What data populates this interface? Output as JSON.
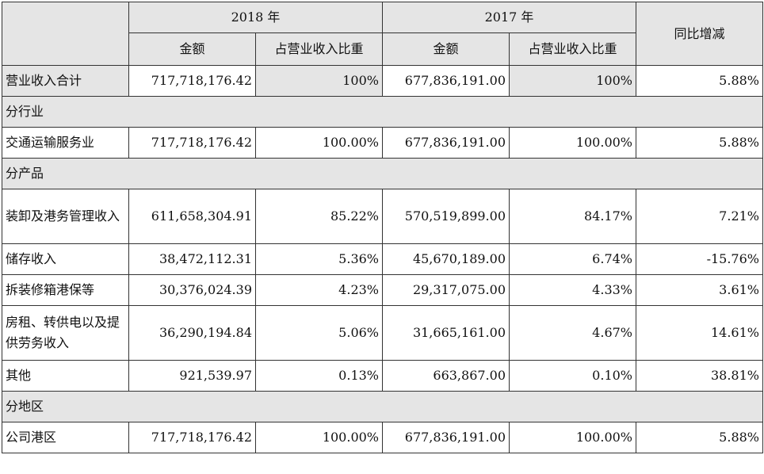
{
  "header": {
    "year_2018": "2018 年",
    "year_2017": "2017 年",
    "yoy": "同比增减",
    "amount_2018": "金额",
    "ratio_2018": "占营业收入比重",
    "amount_2017": "金额",
    "ratio_2017": "占营业收入比重"
  },
  "total": {
    "label": "营业收入合计",
    "amount_2018": "717,718,176.42",
    "ratio_2018": "100%",
    "amount_2017": "677,836,191.00",
    "ratio_2017": "100%",
    "yoy": "5.88%"
  },
  "sections": {
    "industry": "分行业",
    "product": "分产品",
    "region": "分地区"
  },
  "rows": {
    "transport": {
      "label": "交通运输服务业",
      "amount_2018": "717,718,176.42",
      "ratio_2018": "100.00%",
      "amount_2017": "677,836,191.00",
      "ratio_2017": "100.00%",
      "yoy": "5.88%"
    },
    "loading": {
      "label": "装卸及港务管理收入",
      "amount_2018": "611,658,304.91",
      "ratio_2018": "85.22%",
      "amount_2017": "570,519,899.00",
      "ratio_2017": "84.17%",
      "yoy": "7.21%"
    },
    "storage": {
      "label": "储存收入",
      "amount_2018": "38,472,112.31",
      "ratio_2018": "5.36%",
      "amount_2017": "45,670,189.00",
      "ratio_2017": "6.74%",
      "yoy": "-15.76%"
    },
    "container": {
      "label": "拆装修箱港保等",
      "amount_2018": "30,376,024.39",
      "ratio_2018": "4.23%",
      "amount_2017": "29,317,075.00",
      "ratio_2017": "4.33%",
      "yoy": "3.61%"
    },
    "rent": {
      "label": "房租、转供电以及提供劳务收入",
      "amount_2018": "36,290,194.84",
      "ratio_2018": "5.06%",
      "amount_2017": "31,665,161.00",
      "ratio_2017": "4.67%",
      "yoy": "14.61%"
    },
    "other": {
      "label": "其他",
      "amount_2018": "921,539.97",
      "ratio_2018": "0.13%",
      "amount_2017": "663,867.00",
      "ratio_2017": "0.10%",
      "yoy": "38.81%"
    },
    "port": {
      "label": "公司港区",
      "amount_2018": "717,718,176.42",
      "ratio_2018": "100.00%",
      "amount_2017": "677,836,191.00",
      "ratio_2017": "100.00%",
      "yoy": "5.88%"
    }
  }
}
